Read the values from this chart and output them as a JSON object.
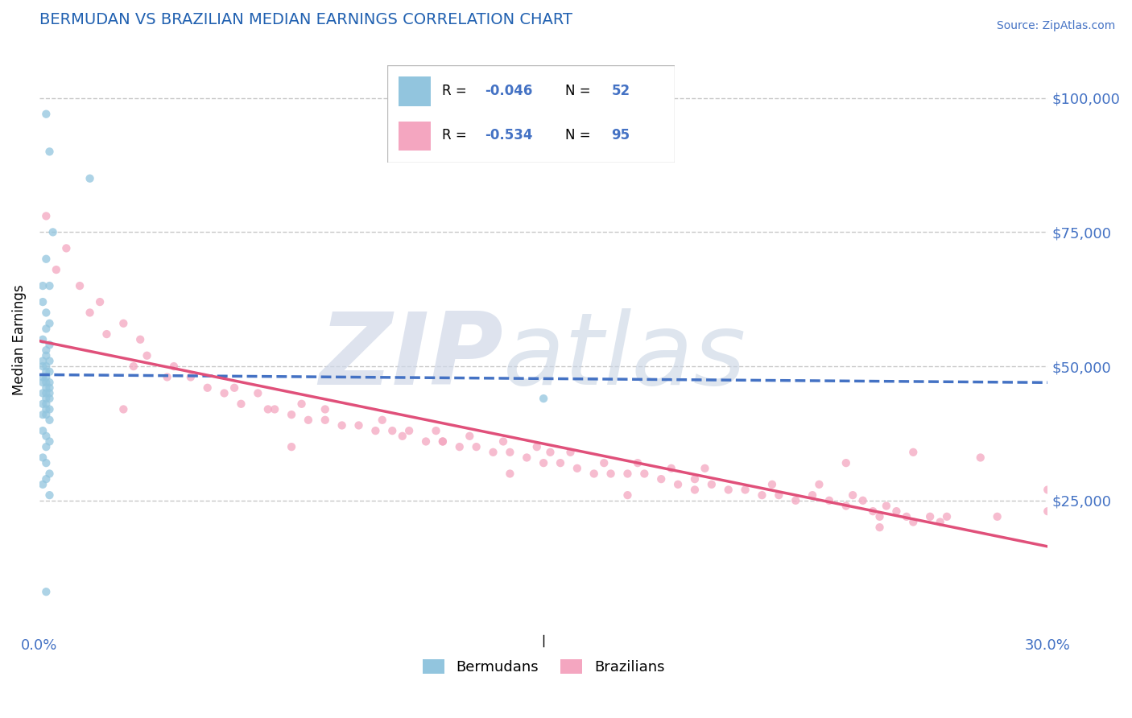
{
  "title": "BERMUDAN VS BRAZILIAN MEDIAN EARNINGS CORRELATION CHART",
  "source": "Source: ZipAtlas.com",
  "ylabel": "Median Earnings",
  "xlim": [
    0.0,
    0.3
  ],
  "ylim": [
    0,
    110000
  ],
  "bermudan_color": "#92c5de",
  "brazilian_color": "#f4a6c0",
  "bermudan_trend_color": "#4472c4",
  "brazilian_trend_color": "#e0507a",
  "title_color": "#2060b0",
  "axis_label_color": "#4472c4",
  "grid_color": "#c8c8c8",
  "ytick_vals": [
    0,
    25000,
    50000,
    75000,
    100000
  ],
  "ytick_labels": [
    "",
    "$25,000",
    "$50,000",
    "$75,000",
    "$100,000"
  ],
  "bermudan_R": -0.046,
  "bermudan_N": 52,
  "brazilian_R": -0.534,
  "brazilian_N": 95,
  "berm_x": [
    0.002,
    0.003,
    0.015,
    0.004,
    0.002,
    0.001,
    0.003,
    0.001,
    0.002,
    0.003,
    0.002,
    0.001,
    0.003,
    0.002,
    0.002,
    0.001,
    0.003,
    0.002,
    0.001,
    0.003,
    0.002,
    0.001,
    0.002,
    0.003,
    0.002,
    0.001,
    0.003,
    0.002,
    0.003,
    0.002,
    0.001,
    0.002,
    0.003,
    0.002,
    0.001,
    0.003,
    0.002,
    0.001,
    0.002,
    0.003,
    0.001,
    0.002,
    0.003,
    0.002,
    0.001,
    0.002,
    0.003,
    0.002,
    0.001,
    0.003,
    0.15,
    0.002
  ],
  "berm_y": [
    97000,
    90000,
    85000,
    75000,
    70000,
    65000,
    65000,
    62000,
    60000,
    58000,
    57000,
    55000,
    54000,
    53000,
    52000,
    51000,
    51000,
    50000,
    50000,
    49000,
    49000,
    48000,
    48000,
    47000,
    47000,
    47000,
    46000,
    46000,
    45000,
    45000,
    45000,
    44000,
    44000,
    43000,
    43000,
    42000,
    42000,
    41000,
    41000,
    40000,
    38000,
    37000,
    36000,
    35000,
    33000,
    32000,
    30000,
    29000,
    28000,
    26000,
    44000,
    8000
  ],
  "braz_x": [
    0.002,
    0.005,
    0.008,
    0.012,
    0.015,
    0.018,
    0.02,
    0.025,
    0.028,
    0.032,
    0.03,
    0.038,
    0.04,
    0.045,
    0.05,
    0.055,
    0.058,
    0.06,
    0.065,
    0.068,
    0.07,
    0.075,
    0.078,
    0.08,
    0.085,
    0.085,
    0.09,
    0.095,
    0.1,
    0.102,
    0.105,
    0.108,
    0.11,
    0.115,
    0.118,
    0.12,
    0.125,
    0.128,
    0.13,
    0.135,
    0.138,
    0.14,
    0.145,
    0.148,
    0.15,
    0.152,
    0.155,
    0.158,
    0.16,
    0.165,
    0.168,
    0.17,
    0.175,
    0.178,
    0.18,
    0.185,
    0.188,
    0.19,
    0.195,
    0.198,
    0.2,
    0.205,
    0.21,
    0.215,
    0.218,
    0.22,
    0.225,
    0.23,
    0.232,
    0.235,
    0.24,
    0.242,
    0.245,
    0.248,
    0.25,
    0.252,
    0.255,
    0.258,
    0.26,
    0.265,
    0.268,
    0.27,
    0.025,
    0.075,
    0.25,
    0.175,
    0.12,
    0.14,
    0.195,
    0.3,
    0.28,
    0.26,
    0.24,
    0.3,
    0.285
  ],
  "braz_y": [
    78000,
    68000,
    72000,
    65000,
    60000,
    62000,
    56000,
    58000,
    50000,
    52000,
    55000,
    48000,
    50000,
    48000,
    46000,
    45000,
    46000,
    43000,
    45000,
    42000,
    42000,
    41000,
    43000,
    40000,
    40000,
    42000,
    39000,
    39000,
    38000,
    40000,
    38000,
    37000,
    38000,
    36000,
    38000,
    36000,
    35000,
    37000,
    35000,
    34000,
    36000,
    34000,
    33000,
    35000,
    32000,
    34000,
    32000,
    34000,
    31000,
    30000,
    32000,
    30000,
    30000,
    32000,
    30000,
    29000,
    31000,
    28000,
    29000,
    31000,
    28000,
    27000,
    27000,
    26000,
    28000,
    26000,
    25000,
    26000,
    28000,
    25000,
    24000,
    26000,
    25000,
    23000,
    22000,
    24000,
    23000,
    22000,
    21000,
    22000,
    21000,
    22000,
    42000,
    35000,
    20000,
    26000,
    36000,
    30000,
    27000,
    27000,
    33000,
    34000,
    32000,
    23000,
    22000
  ]
}
